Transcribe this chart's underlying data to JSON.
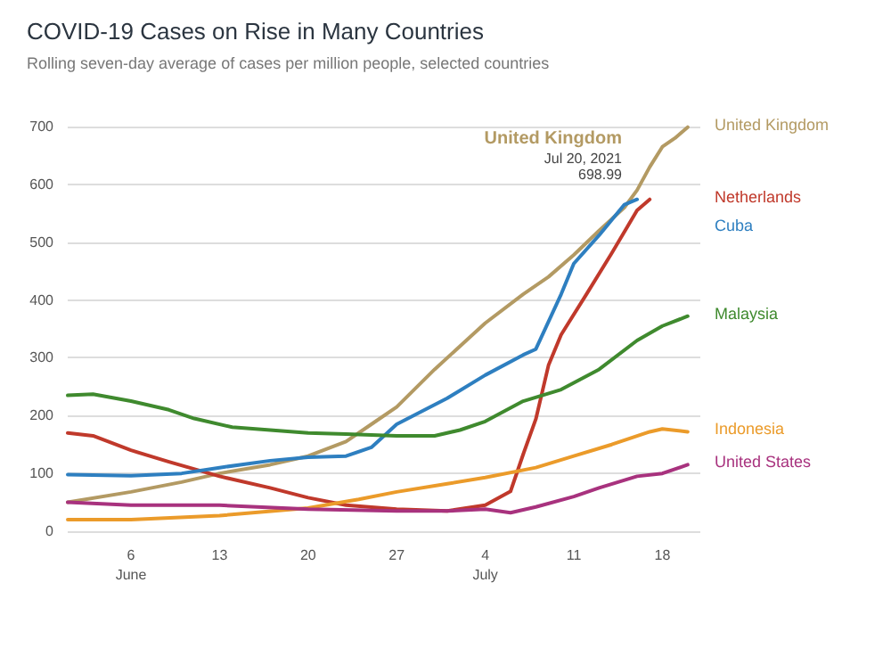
{
  "chart_data": {
    "type": "line",
    "title": "COVID-19 Cases on Rise in Many Countries",
    "subtitle": "Rolling seven-day average of cases per million people, selected countries",
    "xlim": [
      "2021-06-01",
      "2021-07-21"
    ],
    "xticks": [
      {
        "value": "2021-06-06",
        "label": "6\nJune"
      },
      {
        "value": "2021-06-13",
        "label": "13"
      },
      {
        "value": "2021-06-20",
        "label": "20"
      },
      {
        "value": "2021-06-27",
        "label": "27"
      },
      {
        "value": "2021-07-04",
        "label": "4\nJuly"
      },
      {
        "value": "2021-07-11",
        "label": "11"
      },
      {
        "value": "2021-07-18",
        "label": "18"
      }
    ],
    "ylim": [
      0,
      700
    ],
    "yticks": [
      0,
      100,
      200,
      300,
      400,
      500,
      600,
      700
    ],
    "grid": "y",
    "legend": false,
    "marker": "none",
    "line_style": "solid",
    "annotations": [
      "United Kingdom",
      "Jul 20, 2021",
      "698.99"
    ],
    "series": [
      {
        "name": "United Kingdom",
        "color": "#b39a63",
        "x": [
          "2021-06-01",
          "2021-06-06",
          "2021-06-10",
          "2021-06-13",
          "2021-06-17",
          "2021-06-20",
          "2021-06-23",
          "2021-06-25",
          "2021-06-27",
          "2021-06-30",
          "2021-07-02",
          "2021-07-04",
          "2021-07-07",
          "2021-07-09",
          "2021-07-11",
          "2021-07-13",
          "2021-07-15",
          "2021-07-16",
          "2021-07-17",
          "2021-07-18",
          "2021-07-19",
          "2021-07-20"
        ],
        "values": [
          50,
          68,
          85,
          100,
          115,
          130,
          155,
          185,
          215,
          280,
          320,
          360,
          410,
          440,
          478,
          520,
          560,
          590,
          630,
          665,
          680,
          699
        ]
      },
      {
        "name": "Netherlands",
        "color": "#c0392b",
        "x": [
          "2021-06-01",
          "2021-06-03",
          "2021-06-06",
          "2021-06-09",
          "2021-06-13",
          "2021-06-17",
          "2021-06-20",
          "2021-06-23",
          "2021-06-27",
          "2021-07-01",
          "2021-07-04",
          "2021-07-06",
          "2021-07-07",
          "2021-07-08",
          "2021-07-09",
          "2021-07-10",
          "2021-07-12",
          "2021-07-14",
          "2021-07-16",
          "2021-07-17"
        ],
        "values": [
          170,
          165,
          140,
          120,
          95,
          75,
          58,
          45,
          38,
          35,
          45,
          69,
          133,
          194,
          287,
          340,
          410,
          481,
          555,
          574
        ]
      },
      {
        "name": "Cuba",
        "color": "#2e7fc0",
        "x": [
          "2021-06-01",
          "2021-06-06",
          "2021-06-10",
          "2021-06-13",
          "2021-06-17",
          "2021-06-20",
          "2021-06-23",
          "2021-06-25",
          "2021-06-27",
          "2021-07-01",
          "2021-07-04",
          "2021-07-07",
          "2021-07-08",
          "2021-07-10",
          "2021-07-11",
          "2021-07-13",
          "2021-07-15",
          "2021-07-16"
        ],
        "values": [
          98,
          96,
          100,
          110,
          122,
          128,
          130,
          145,
          185,
          230,
          270,
          305,
          315,
          410,
          463,
          512,
          565,
          574
        ]
      },
      {
        "name": "Malaysia",
        "color": "#3f8a2e",
        "x": [
          "2021-06-01",
          "2021-06-03",
          "2021-06-06",
          "2021-06-09",
          "2021-06-11",
          "2021-06-14",
          "2021-06-17",
          "2021-06-20",
          "2021-06-23",
          "2021-06-27",
          "2021-06-30",
          "2021-07-02",
          "2021-07-04",
          "2021-07-07",
          "2021-07-10",
          "2021-07-13",
          "2021-07-16",
          "2021-07-18",
          "2021-07-20"
        ],
        "values": [
          235,
          237,
          225,
          210,
          195,
          180,
          175,
          170,
          168,
          165,
          165,
          175,
          190,
          225,
          245,
          280,
          330,
          355,
          372
        ]
      },
      {
        "name": "Indonesia",
        "color": "#eb9b2a",
        "x": [
          "2021-06-01",
          "2021-06-06",
          "2021-06-13",
          "2021-06-20",
          "2021-06-24",
          "2021-06-27",
          "2021-07-01",
          "2021-07-04",
          "2021-07-08",
          "2021-07-11",
          "2021-07-14",
          "2021-07-17",
          "2021-07-18",
          "2021-07-20"
        ],
        "values": [
          20,
          20,
          27,
          40,
          55,
          68,
          82,
          93,
          110,
          130,
          150,
          172,
          177,
          172
        ]
      },
      {
        "name": "United States",
        "color": "#a8327e",
        "x": [
          "2021-06-01",
          "2021-06-06",
          "2021-06-13",
          "2021-06-20",
          "2021-06-27",
          "2021-07-01",
          "2021-07-04",
          "2021-07-06",
          "2021-07-08",
          "2021-07-11",
          "2021-07-13",
          "2021-07-16",
          "2021-07-18",
          "2021-07-20"
        ],
        "values": [
          50,
          45,
          45,
          38,
          35,
          35,
          38,
          32,
          42,
          60,
          75,
          95,
          100,
          115
        ]
      }
    ]
  }
}
